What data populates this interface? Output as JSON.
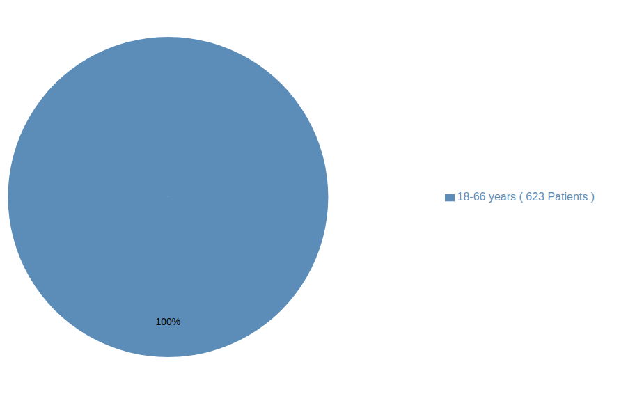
{
  "chart_data": {
    "type": "pie",
    "categories": [
      "18-66 years ( 623 Patients )"
    ],
    "values": [
      100
    ],
    "value_labels": [
      "100%"
    ],
    "colors": [
      "#5b8db8"
    ],
    "data_labels": true,
    "legend": "right"
  }
}
